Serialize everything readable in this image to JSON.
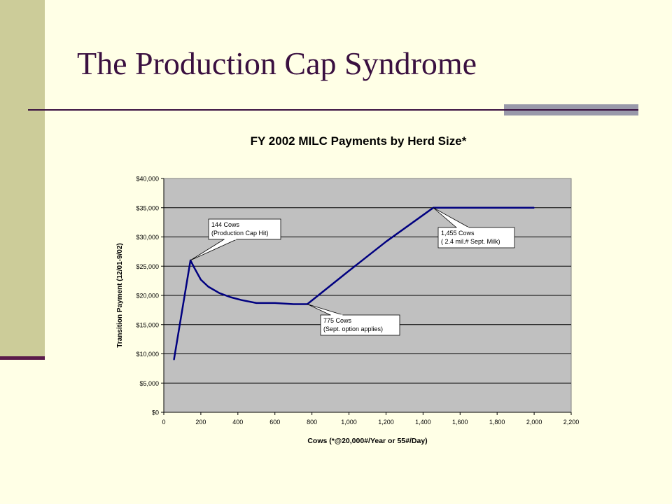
{
  "slide": {
    "title": "The Production Cap Syndrome",
    "colors": {
      "background": "#FFFFE6",
      "sidebar": "#CCCC99",
      "accent": "#3A1040",
      "rule_block": "#9999AA"
    }
  },
  "chart_data": {
    "type": "line",
    "title": "FY 2002 MILC Payments by Herd Size*",
    "xlabel": "Cows  (*@20,000#/Year or 55#/Day)",
    "ylabel": "Transition Payment (12/01-9/02)",
    "xlim": [
      0,
      2200
    ],
    "ylim": [
      0,
      40000
    ],
    "x_ticks": [
      0,
      200,
      400,
      600,
      800,
      1000,
      1200,
      1400,
      1600,
      1800,
      2000,
      2200
    ],
    "x_tick_labels": [
      "0",
      "200",
      "400",
      "600",
      "800",
      "1,000",
      "1,200",
      "1,400",
      "1,600",
      "1,800",
      "2,000",
      "2,200"
    ],
    "y_ticks": [
      0,
      5000,
      10000,
      15000,
      20000,
      25000,
      30000,
      35000,
      40000
    ],
    "y_tick_labels": [
      "$0",
      "$5,000",
      "$10,000",
      "$15,000",
      "$20,000",
      "$25,000",
      "$30,000",
      "$35,000",
      "$40,000"
    ],
    "grid": "horizontal",
    "plot_background": "#C0C0C0",
    "series_color": "#000080",
    "series": [
      {
        "x": [
          55,
          144,
          165,
          200,
          240,
          300,
          360,
          420,
          500,
          600,
          700,
          775,
          1000,
          1200,
          1455,
          1600,
          2000
        ],
        "values": [
          9000,
          26000,
          24700,
          22700,
          21500,
          20400,
          19700,
          19200,
          18700,
          18700,
          18500,
          18500,
          24200,
          29200,
          35000,
          35000,
          35000
        ]
      }
    ],
    "annotations": [
      {
        "x": 144,
        "y": 26000,
        "lines": [
          "144 Cows",
          "(Production Cap Hit)"
        ]
      },
      {
        "x": 775,
        "y": 18500,
        "lines": [
          "775 Cows",
          "(Sept. option applies)"
        ]
      },
      {
        "x": 1455,
        "y": 35000,
        "lines": [
          "1,455 Cows",
          "( 2.4 mil.# Sept. Milk)"
        ]
      }
    ]
  }
}
